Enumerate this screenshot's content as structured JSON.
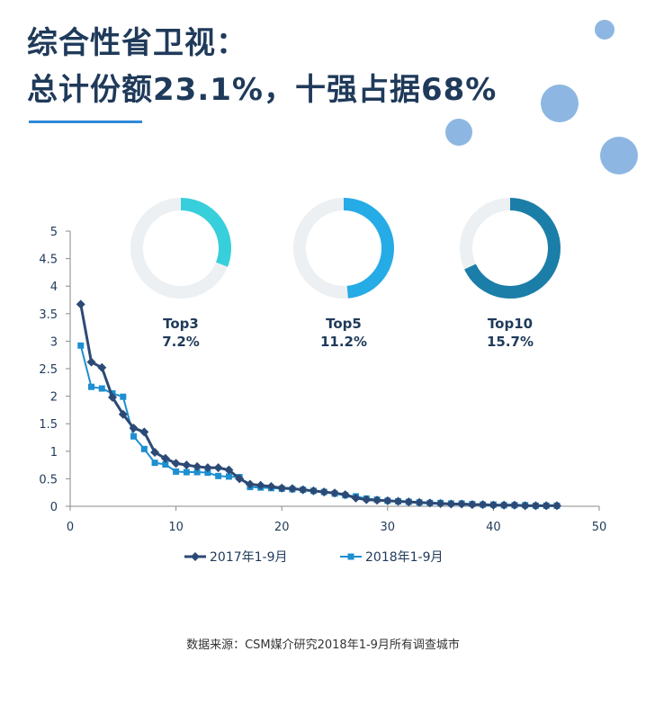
{
  "header": {
    "title_line1": "综合性省卫视：",
    "title_line2": "总计份额23.1%，十强占据68%"
  },
  "colors": {
    "title": "#1f3a5a",
    "accent": "#2e8ad6",
    "bubble": "#8db7e2",
    "series_2017": "#2c4a75",
    "series_2018": "#1e8fd0",
    "donut_top3": "#38cfdc",
    "donut_top5": "#25abe6",
    "donut_top10": "#1b7ea8",
    "donut_track": "#ecf0f3"
  },
  "donuts": [
    {
      "label": "Top3",
      "value_text": "7.2%",
      "fraction": 0.31,
      "color": "#38cfdc"
    },
    {
      "label": "Top5",
      "value_text": "11.2%",
      "fraction": 0.485,
      "color": "#25abe6"
    },
    {
      "label": "Top10",
      "value_text": "15.7%",
      "fraction": 0.68,
      "color": "#1b7ea8"
    }
  ],
  "chart_data": {
    "type": "line",
    "xlim": [
      0,
      50
    ],
    "ylim": [
      0,
      5
    ],
    "x_ticks": [
      0,
      10,
      20,
      30,
      40,
      50
    ],
    "y_ticks": [
      0,
      0.5,
      1,
      1.5,
      2,
      2.5,
      3,
      3.5,
      4,
      4.5,
      5
    ],
    "legend_position": "bottom",
    "grid": false,
    "series": [
      {
        "name": "2017年1-9月",
        "marker": "diamond",
        "x": [
          1,
          2,
          3,
          4,
          5,
          6,
          7,
          8,
          9,
          10,
          11,
          12,
          13,
          14,
          15,
          16,
          17,
          18,
          19,
          20,
          21,
          22,
          23,
          24,
          25,
          26,
          27,
          28,
          29,
          30,
          31,
          32,
          33,
          34,
          35,
          36,
          37,
          38,
          39,
          40,
          41,
          42,
          43,
          44,
          45,
          46
        ],
        "y": [
          3.67,
          2.62,
          2.52,
          1.98,
          1.67,
          1.42,
          1.35,
          0.98,
          0.87,
          0.78,
          0.75,
          0.72,
          0.7,
          0.7,
          0.66,
          0.5,
          0.4,
          0.38,
          0.36,
          0.33,
          0.32,
          0.3,
          0.28,
          0.26,
          0.24,
          0.21,
          0.15,
          0.12,
          0.11,
          0.1,
          0.09,
          0.08,
          0.07,
          0.06,
          0.05,
          0.04,
          0.04,
          0.03,
          0.03,
          0.02,
          0.02,
          0.02,
          0.01,
          0.01,
          0.01,
          0.01
        ]
      },
      {
        "name": "2018年1-9月",
        "marker": "square",
        "x": [
          1,
          2,
          3,
          4,
          5,
          6,
          7,
          8,
          9,
          10,
          11,
          12,
          13,
          14,
          15,
          16,
          17,
          18,
          19,
          20,
          21,
          22,
          23,
          24,
          25,
          26,
          27,
          28,
          29,
          30,
          31,
          32,
          33,
          34,
          35,
          36,
          37,
          38,
          39,
          40,
          41,
          42,
          43,
          44,
          45,
          46
        ],
        "y": [
          2.92,
          2.17,
          2.14,
          2.05,
          1.99,
          1.27,
          1.04,
          0.79,
          0.76,
          0.63,
          0.62,
          0.62,
          0.61,
          0.55,
          0.54,
          0.53,
          0.35,
          0.34,
          0.33,
          0.32,
          0.31,
          0.3,
          0.28,
          0.26,
          0.23,
          0.2,
          0.18,
          0.14,
          0.12,
          0.1,
          0.09,
          0.08,
          0.07,
          0.06,
          0.06,
          0.05,
          0.05,
          0.04,
          0.03,
          0.03,
          0.02,
          0.02,
          0.02,
          0.01,
          0.01,
          0.01
        ]
      }
    ]
  },
  "footer": {
    "source": "数据来源：CSM媒介研究2018年1-9月所有调查城市"
  }
}
